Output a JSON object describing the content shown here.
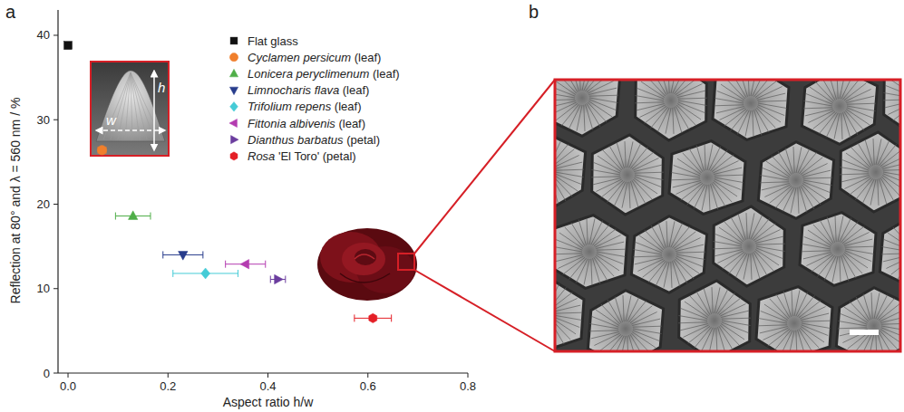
{
  "chart_data": {
    "type": "scatter",
    "panel_label": "a",
    "x_label": "Aspect ratio h/w",
    "y_label": "Reflection at 80° and λ = 560 nm / %",
    "xlim": [
      -0.02,
      0.8
    ],
    "ylim": [
      0,
      43
    ],
    "xticks": [
      {
        "value": 0,
        "label": "0.0"
      },
      {
        "value": 0.2,
        "label": "0.2"
      },
      {
        "value": 0.4,
        "label": "0.4"
      },
      {
        "value": 0.6,
        "label": "0.6"
      },
      {
        "value": 0.8,
        "label": "0.8"
      }
    ],
    "yticks": [
      0,
      10,
      20,
      30,
      40
    ],
    "legend": "upper right",
    "inset_labels": [
      "w",
      "h"
    ],
    "series": [
      {
        "name": "Flat glass",
        "color": "#111111",
        "marker": "square",
        "x": [
          0
        ],
        "values": [
          38.8
        ]
      },
      {
        "name": "Cyclamen persicum (leaf)",
        "color": "#f07f2c",
        "marker": "circle",
        "x": [
          0.068
        ],
        "values": [
          26.4
        ],
        "x_error": [
          0.008
        ]
      },
      {
        "name": "Lonicera peryclimenum (leaf)",
        "color": "#4fae48",
        "marker": "triangle-up",
        "x": [
          0.13
        ],
        "values": [
          18.6
        ],
        "x_error": [
          0.035
        ]
      },
      {
        "name": "Limnocharis flava (leaf)",
        "color": "#283c8c",
        "marker": "triangle-down",
        "x": [
          0.23
        ],
        "values": [
          14.0
        ],
        "x_error": [
          0.04
        ]
      },
      {
        "name": "Trifolium repens (leaf)",
        "color": "#45cbd6",
        "marker": "diamond",
        "x": [
          0.275
        ],
        "values": [
          11.8
        ],
        "x_error": [
          0.065
        ]
      },
      {
        "name": "Fittonia albivenis (leaf)",
        "color": "#b43cb0",
        "marker": "triangle-left",
        "x": [
          0.355
        ],
        "values": [
          12.9
        ],
        "x_error": [
          0.04
        ]
      },
      {
        "name": "Dianthus barbatus (petal)",
        "color": "#6b3d9e",
        "marker": "triangle-right",
        "x": [
          0.42
        ],
        "values": [
          11.1
        ],
        "x_error": [
          0.015
        ]
      },
      {
        "name": "Rosa 'El Toro' (petal)",
        "color": "#e41f26",
        "marker": "hexagon",
        "x": [
          0.61
        ],
        "values": [
          6.5
        ],
        "x_error": [
          0.037
        ]
      }
    ]
  },
  "panel_b": {
    "label": "b"
  }
}
